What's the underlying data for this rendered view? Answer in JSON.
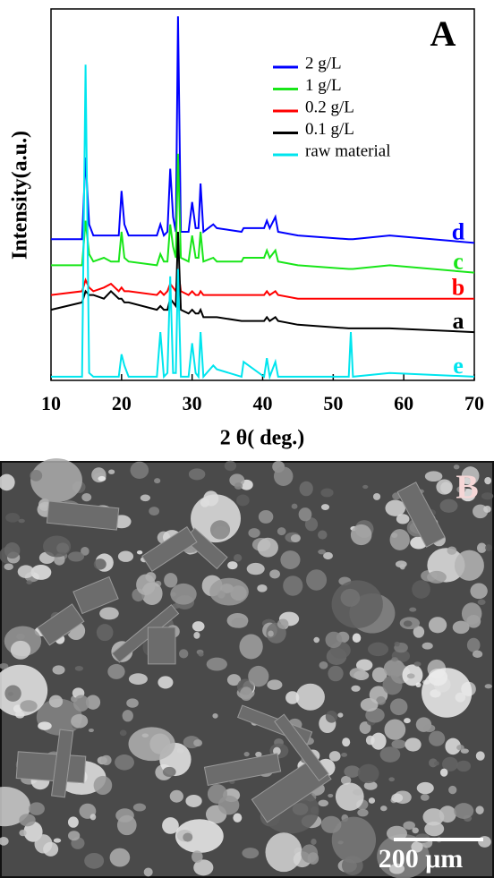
{
  "chart_data": {
    "type": "line",
    "panel_label": "A",
    "xlabel": "2 θ( deg.)",
    "ylabel": "Intensity(a.u.)",
    "x": [
      10,
      14.4,
      14.9,
      15.4,
      16,
      17.5,
      18.5,
      19.6,
      20,
      20.4,
      21,
      25,
      25.5,
      26,
      26.5,
      26.9,
      27.3,
      27.7,
      28,
      28.4,
      29.5,
      30,
      30.5,
      30.9,
      31.2,
      31.6,
      33,
      33.5,
      37,
      37.3,
      40.2,
      40.6,
      41,
      41.8,
      42.2,
      45,
      52.2,
      52.5,
      52.8,
      58,
      70
    ],
    "series": [
      {
        "name": "2 g/L",
        "label": "d",
        "color": "#0000ff",
        "values": [
          38,
          38,
          60,
          42,
          39,
          39,
          39,
          39,
          51,
          42,
          39,
          39,
          42,
          39,
          40,
          57,
          44,
          40,
          98,
          40,
          40,
          48,
          41,
          41,
          53,
          40,
          42,
          41,
          40,
          41,
          41,
          43,
          41,
          44,
          40,
          39,
          38,
          38,
          38,
          39,
          37
        ]
      },
      {
        "name": "1 g/L",
        "label": "c",
        "color": "#19e619",
        "values": [
          31,
          31,
          43,
          34,
          32,
          33,
          32,
          32,
          40,
          33,
          32,
          31,
          34,
          32,
          32,
          42,
          36,
          33,
          61,
          33,
          32,
          39,
          33,
          33,
          40,
          32,
          33,
          32,
          32,
          33,
          33,
          35,
          33,
          35,
          32,
          31,
          30,
          30,
          30,
          31,
          29
        ]
      },
      {
        "name": "0.2 g/L",
        "label": "b",
        "color": "#ff0000",
        "values": [
          23,
          24,
          27,
          25,
          24,
          25,
          26,
          24,
          25,
          24,
          24,
          23,
          24,
          23,
          24,
          26,
          25,
          24,
          30,
          24,
          23,
          24,
          23,
          23,
          24,
          23,
          23,
          23,
          23,
          23,
          23,
          24,
          23,
          24,
          23,
          22,
          22,
          22,
          22,
          22,
          22
        ]
      },
      {
        "name": "0.1 g/L",
        "label": "a",
        "color": "#000000",
        "values": [
          19,
          21,
          24,
          23,
          23,
          22,
          24,
          22,
          22,
          21,
          21,
          19,
          20,
          19,
          19,
          22,
          21,
          20,
          40,
          19,
          18,
          19,
          18,
          18,
          19,
          17,
          17,
          17,
          16,
          16,
          16,
          17,
          16,
          17,
          16,
          15,
          14,
          14,
          14,
          14,
          13
        ]
      },
      {
        "name": "raw material",
        "label": "e",
        "color": "#00e5ee",
        "values": [
          1,
          1,
          85,
          2,
          1,
          1,
          1,
          1,
          7,
          4,
          1,
          1,
          13,
          1,
          2,
          28,
          2,
          2,
          30,
          1,
          1,
          10,
          2,
          1,
          13,
          1,
          4,
          3,
          1,
          5,
          1,
          6,
          1,
          5,
          1,
          1,
          1,
          13,
          1,
          2,
          1
        ]
      }
    ],
    "xlim": [
      10,
      70
    ],
    "xticks": [
      10,
      20,
      30,
      40,
      50,
      60,
      70
    ],
    "ylim": [
      0,
      100
    ]
  },
  "panel_b": {
    "label": "B",
    "scale_bar": "200 μm"
  }
}
